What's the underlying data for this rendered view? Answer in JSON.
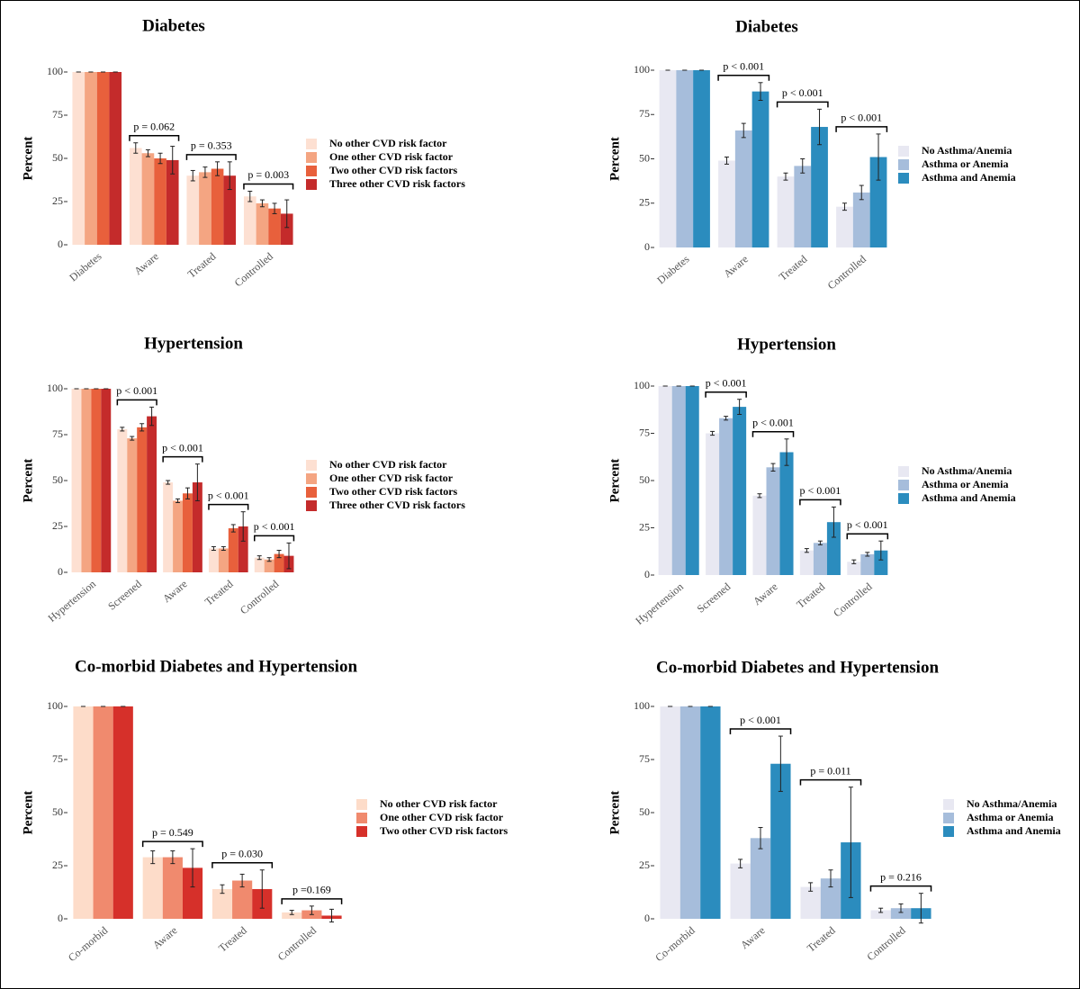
{
  "chart_data": [
    {
      "type": "bar",
      "title": "Diabetes",
      "ylabel": "Percent",
      "categories": [
        "Diabetes",
        "Aware",
        "Treated",
        "Controlled"
      ],
      "series": [
        {
          "name": "No other CVD risk factor",
          "color": "#fde0d2",
          "values": [
            100,
            56,
            40,
            28
          ],
          "errors": [
            0,
            3,
            3,
            3
          ]
        },
        {
          "name": "One other CVD risk factor",
          "color": "#f4a582",
          "values": [
            100,
            53,
            42,
            24
          ],
          "errors": [
            0,
            2,
            3,
            2
          ]
        },
        {
          "name": "Two other CVD risk factors",
          "color": "#e8603c",
          "values": [
            100,
            50,
            44,
            21
          ],
          "errors": [
            0,
            3,
            4,
            3
          ]
        },
        {
          "name": "Three other CVD risk factors",
          "color": "#c42b2b",
          "values": [
            100,
            49,
            40,
            18
          ],
          "errors": [
            0,
            8,
            8,
            8
          ]
        }
      ],
      "p_values": [
        null,
        "p = 0.062",
        "p = 0.353",
        "p = 0.003"
      ],
      "ylim": [
        0,
        100
      ],
      "yticks": [
        0,
        25,
        50,
        75,
        100
      ]
    },
    {
      "type": "bar",
      "title": "Diabetes",
      "ylabel": "Percent",
      "categories": [
        "Diabetes",
        "Aware",
        "Treated",
        "Controlled"
      ],
      "series": [
        {
          "name": "No Asthma/Anemia",
          "color": "#e8e8f2",
          "values": [
            100,
            49,
            40,
            23
          ],
          "errors": [
            0,
            2,
            2,
            2
          ]
        },
        {
          "name": "Asthma or Anemia",
          "color": "#a6bddb",
          "values": [
            100,
            66,
            46,
            31
          ],
          "errors": [
            0,
            4,
            4,
            4
          ]
        },
        {
          "name": "Asthma and Anemia",
          "color": "#2b8cbe",
          "values": [
            100,
            88,
            68,
            51
          ],
          "errors": [
            0,
            5,
            10,
            13
          ]
        }
      ],
      "p_values": [
        null,
        "p < 0.001",
        "p < 0.001",
        "p < 0.001"
      ],
      "ylim": [
        0,
        100
      ],
      "yticks": [
        0,
        25,
        50,
        75,
        100
      ]
    },
    {
      "type": "bar",
      "title": "Hypertension",
      "ylabel": "Percent",
      "categories": [
        "Hypertension",
        "Screened",
        "Aware",
        "Treated",
        "Controlled"
      ],
      "series": [
        {
          "name": "No other CVD risk factor",
          "color": "#fde0d2",
          "values": [
            100,
            78,
            49,
            13,
            8
          ],
          "errors": [
            0,
            1,
            1,
            1,
            1
          ]
        },
        {
          "name": "One other CVD risk factor",
          "color": "#f4a582",
          "values": [
            100,
            73,
            39,
            13,
            7
          ],
          "errors": [
            0,
            1,
            1,
            1,
            1
          ]
        },
        {
          "name": "Two other CVD risk factors",
          "color": "#e8603c",
          "values": [
            100,
            79,
            43,
            24,
            10
          ],
          "errors": [
            0,
            2,
            3,
            2,
            2
          ]
        },
        {
          "name": "Three other CVD risk factors",
          "color": "#c42b2b",
          "values": [
            100,
            85,
            49,
            25,
            9
          ],
          "errors": [
            0,
            5,
            10,
            8,
            7
          ]
        }
      ],
      "p_values": [
        null,
        "p < 0.001",
        "p < 0.001",
        "p < 0.001",
        "p < 0.001"
      ],
      "ylim": [
        0,
        100
      ],
      "yticks": [
        0,
        25,
        50,
        75,
        100
      ]
    },
    {
      "type": "bar",
      "title": "Hypertension",
      "ylabel": "Percent",
      "categories": [
        "Hypertension",
        "Screened",
        "Aware",
        "Treated",
        "Controlled"
      ],
      "series": [
        {
          "name": "No Asthma/Anemia",
          "color": "#e8e8f2",
          "values": [
            100,
            75,
            42,
            13,
            7
          ],
          "errors": [
            0,
            1,
            1,
            1,
            1
          ]
        },
        {
          "name": "Asthma or Anemia",
          "color": "#a6bddb",
          "values": [
            100,
            83,
            57,
            17,
            11
          ],
          "errors": [
            0,
            1,
            2,
            1,
            1
          ]
        },
        {
          "name": "Asthma and Anemia",
          "color": "#2b8cbe",
          "values": [
            100,
            89,
            65,
            28,
            13
          ],
          "errors": [
            0,
            4,
            7,
            8,
            5
          ]
        }
      ],
      "p_values": [
        null,
        "p < 0.001",
        "p < 0.001",
        "p < 0.001",
        "p < 0.001"
      ],
      "ylim": [
        0,
        100
      ],
      "yticks": [
        0,
        25,
        50,
        75,
        100
      ]
    },
    {
      "type": "bar",
      "title": "Co-morbid Diabetes and Hypertension",
      "ylabel": "Percent",
      "categories": [
        "Co-morbid",
        "Aware",
        "Treated",
        "Controlled"
      ],
      "series": [
        {
          "name": "No other CVD risk factor",
          "color": "#fddcc9",
          "values": [
            100,
            29,
            14,
            3
          ],
          "errors": [
            0,
            3,
            2,
            1
          ]
        },
        {
          "name": "One other CVD risk factor",
          "color": "#f08a6e",
          "values": [
            100,
            29,
            18,
            4
          ],
          "errors": [
            0,
            3,
            3,
            2
          ]
        },
        {
          "name": "Two other CVD risk factors",
          "color": "#d6302a",
          "values": [
            100,
            24,
            14,
            1.5
          ],
          "errors": [
            0,
            9,
            9,
            3
          ]
        }
      ],
      "p_values": [
        null,
        "p = 0.549",
        "p = 0.030",
        "p =0.169"
      ],
      "ylim": [
        0,
        100
      ],
      "yticks": [
        0,
        25,
        50,
        75,
        100
      ]
    },
    {
      "type": "bar",
      "title": "Co-morbid Diabetes and Hypertension",
      "ylabel": "Percent",
      "categories": [
        "Co-morbid",
        "Aware",
        "Treated",
        "Controlled"
      ],
      "series": [
        {
          "name": "No Asthma/Anemia",
          "color": "#e8e8f2",
          "values": [
            100,
            26,
            15,
            4
          ],
          "errors": [
            0,
            2,
            2,
            1
          ]
        },
        {
          "name": "Asthma or Anemia",
          "color": "#a6bddb",
          "values": [
            100,
            38,
            19,
            5
          ],
          "errors": [
            0,
            5,
            4,
            2
          ]
        },
        {
          "name": "Asthma and Anemia",
          "color": "#2b8cbe",
          "values": [
            100,
            73,
            36,
            5
          ],
          "errors": [
            0,
            13,
            26,
            7
          ]
        }
      ],
      "p_values": [
        null,
        "p < 0.001",
        "p = 0.011",
        "p = 0.216"
      ],
      "ylim": [
        0,
        100
      ],
      "yticks": [
        0,
        25,
        50,
        75,
        100
      ]
    }
  ]
}
